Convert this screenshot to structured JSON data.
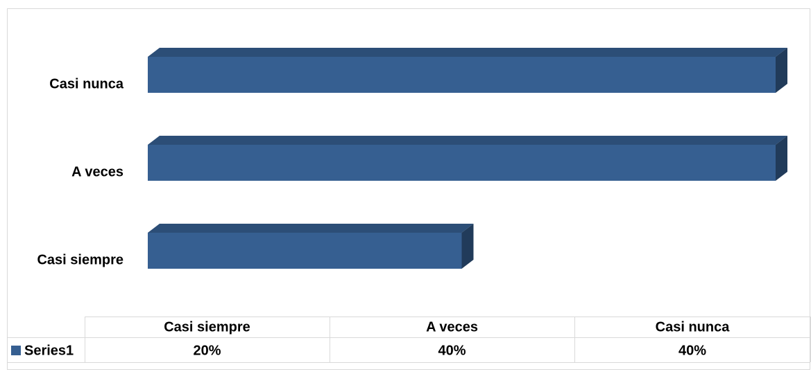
{
  "chart_data": {
    "type": "bar",
    "orientation": "horizontal",
    "categories": [
      "Casi siempre",
      "A veces",
      "Casi nunca"
    ],
    "series": [
      {
        "name": "Series1",
        "color": "#365f91",
        "values": [
          20,
          40,
          40
        ],
        "value_labels": [
          "20%",
          "40%",
          "40%"
        ]
      }
    ]
  }
}
